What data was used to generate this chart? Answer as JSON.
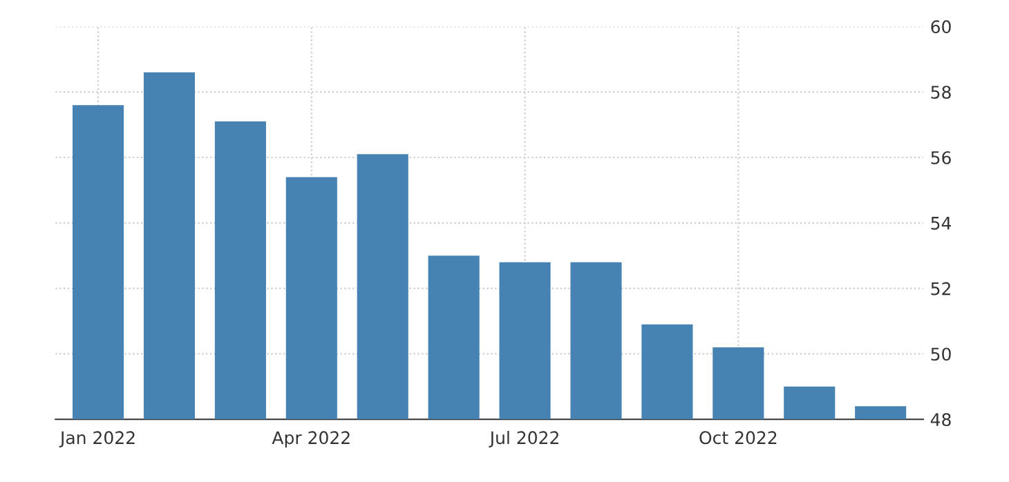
{
  "chart_data": {
    "type": "bar",
    "categories": [
      "Jan 2022",
      null,
      null,
      "Apr 2022",
      null,
      null,
      "Jul 2022",
      null,
      null,
      "Oct 2022",
      null,
      null
    ],
    "values": [
      57.6,
      58.6,
      57.1,
      55.4,
      56.1,
      53.0,
      52.8,
      52.8,
      50.9,
      50.2,
      49.0,
      48.4
    ],
    "color": "#4682b4",
    "ylim": [
      48,
      60
    ],
    "yticks": [
      48,
      50,
      52,
      54,
      56,
      58,
      60
    ],
    "grid": true
  }
}
